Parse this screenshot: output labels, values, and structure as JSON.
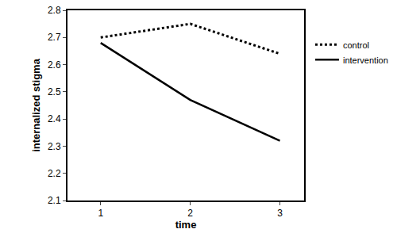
{
  "chart_data": {
    "type": "line",
    "x_label": "time",
    "y_label": "internalized stigma",
    "x": [
      1,
      2,
      3
    ],
    "xlim": [
      0.63,
      3.27
    ],
    "xticks": [
      1,
      2,
      3
    ],
    "ylim": [
      2.1,
      2.8
    ],
    "yticks": [
      2.1,
      2.2,
      2.3,
      2.4,
      2.5,
      2.6,
      2.7,
      2.8
    ],
    "grid": false,
    "legend": "right",
    "series": [
      {
        "name": "control",
        "color": "#000000",
        "line_style": "dot",
        "values": [
          2.7,
          2.75,
          2.64
        ]
      },
      {
        "name": "intervention",
        "color": "#000000",
        "line_style": "solid",
        "values": [
          2.68,
          2.47,
          2.32
        ]
      }
    ]
  }
}
